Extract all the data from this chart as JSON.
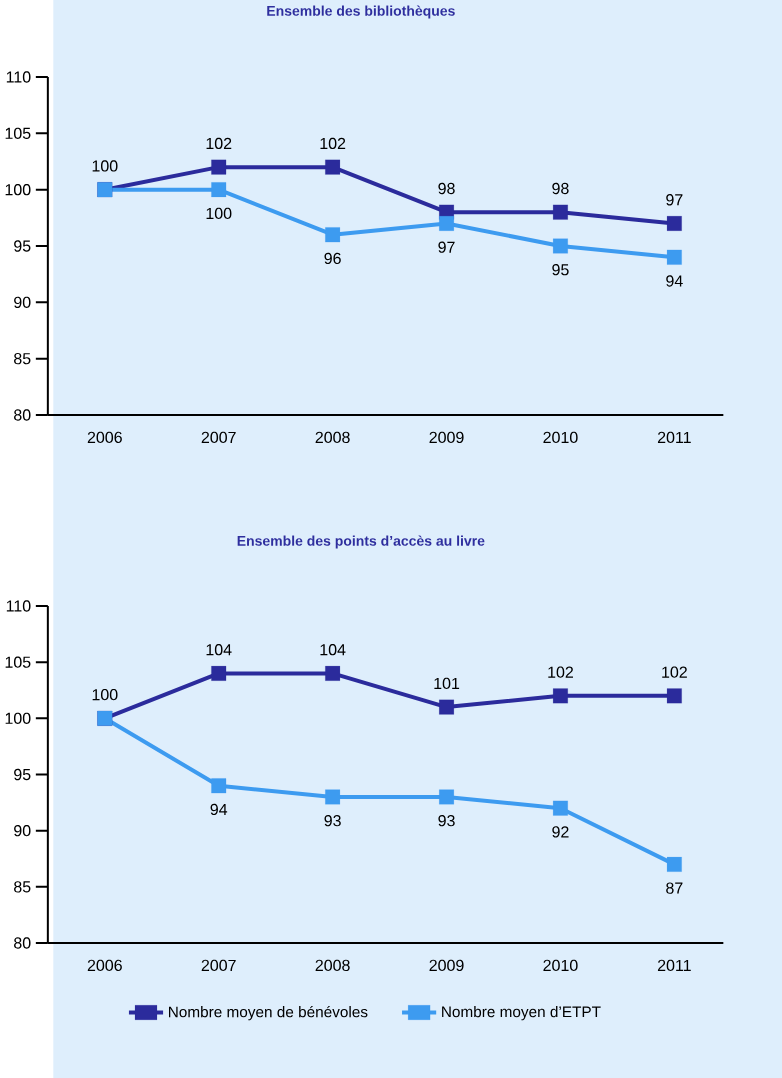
{
  "chart_data": [
    {
      "type": "line",
      "title": "Ensemble des bibliothèques",
      "categories": [
        "2006",
        "2007",
        "2008",
        "2009",
        "2010",
        "2011"
      ],
      "ylim": [
        80,
        110
      ],
      "yticks": [
        80,
        85,
        90,
        95,
        100,
        105,
        110
      ],
      "marker": "square",
      "series": [
        {
          "color": "#2b2b9c",
          "values": [
            100,
            102,
            102,
            98,
            98,
            97
          ],
          "value_labels": [
            "100",
            "102",
            "102",
            "98",
            "98",
            "97"
          ]
        },
        {
          "color": "#3d9bf0",
          "values": [
            100,
            100,
            96,
            97,
            95,
            94
          ],
          "value_labels": [
            null,
            "100",
            "96",
            "97",
            "95",
            "94"
          ]
        }
      ]
    },
    {
      "type": "line",
      "title": "Ensemble des points d’accès au livre",
      "categories": [
        "2006",
        "2007",
        "2008",
        "2009",
        "2010",
        "2011"
      ],
      "ylim": [
        80,
        110
      ],
      "yticks": [
        80,
        85,
        90,
        95,
        100,
        105,
        110
      ],
      "marker": "square",
      "legend": "bottom",
      "series": [
        {
          "name": "Nombre moyen de bénévoles",
          "color": "#2b2b9c",
          "values": [
            100,
            104,
            104,
            101,
            102,
            102
          ],
          "value_labels": [
            "100",
            "104",
            "104",
            "101",
            "102",
            "102"
          ]
        },
        {
          "name": "Nombre moyen d’ETPT",
          "color": "#3d9bf0",
          "values": [
            100,
            94,
            93,
            93,
            92,
            87
          ],
          "value_labels": [
            null,
            "94",
            "93",
            "93",
            "92",
            "87"
          ]
        }
      ]
    }
  ]
}
